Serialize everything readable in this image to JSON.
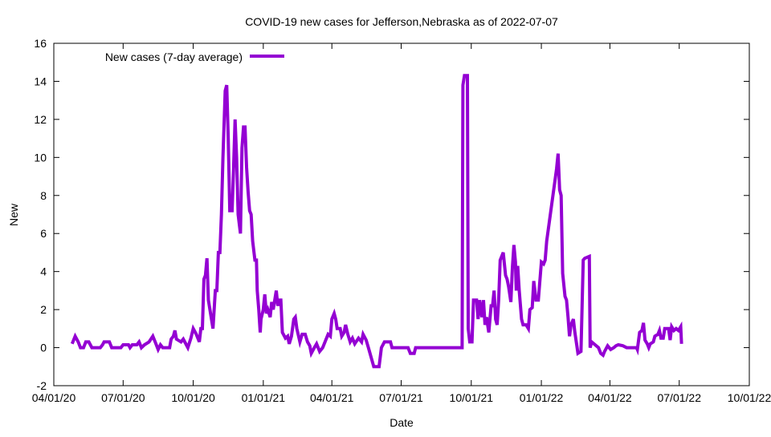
{
  "chart_data": {
    "type": "line",
    "title": "COVID-19 new cases for Jefferson,Nebraska as of 2022-07-07",
    "xlabel": "Date",
    "ylabel": "New",
    "x_units": "days since 04/01/20",
    "xlim": [
      0,
      913
    ],
    "ylim": [
      -2,
      16
    ],
    "grid": false,
    "legend_position": "top-left",
    "x_ticks": [
      {
        "value": 0,
        "label": "04/01/20"
      },
      {
        "value": 91,
        "label": "07/01/20"
      },
      {
        "value": 183,
        "label": "10/01/20"
      },
      {
        "value": 275,
        "label": "01/01/21"
      },
      {
        "value": 365,
        "label": "04/01/21"
      },
      {
        "value": 456,
        "label": "07/01/21"
      },
      {
        "value": 548,
        "label": "10/01/21"
      },
      {
        "value": 640,
        "label": "01/01/22"
      },
      {
        "value": 730,
        "label": "04/01/22"
      },
      {
        "value": 821,
        "label": "07/01/22"
      },
      {
        "value": 913,
        "label": "10/01/22"
      }
    ],
    "y_ticks": [
      {
        "value": -2,
        "label": "-2"
      },
      {
        "value": 0,
        "label": "0"
      },
      {
        "value": 2,
        "label": "2"
      },
      {
        "value": 4,
        "label": "4"
      },
      {
        "value": 6,
        "label": "6"
      },
      {
        "value": 8,
        "label": "8"
      },
      {
        "value": 10,
        "label": "10"
      },
      {
        "value": 12,
        "label": "12"
      },
      {
        "value": 14,
        "label": "14"
      },
      {
        "value": 16,
        "label": "16"
      }
    ],
    "series": [
      {
        "name": "New cases (7-day average)",
        "color": "#9400d3",
        "points": [
          [
            24,
            0.2
          ],
          [
            28,
            0.6
          ],
          [
            32,
            0.3
          ],
          [
            35,
            0
          ],
          [
            39,
            0
          ],
          [
            42,
            0.3
          ],
          [
            46,
            0.3
          ],
          [
            50,
            0
          ],
          [
            61,
            0
          ],
          [
            64,
            0.15
          ],
          [
            66,
            0.3
          ],
          [
            73,
            0.3
          ],
          [
            76,
            0
          ],
          [
            88,
            0
          ],
          [
            91,
            0.15
          ],
          [
            98,
            0.15
          ],
          [
            100,
            0
          ],
          [
            103,
            0.15
          ],
          [
            109,
            0.15
          ],
          [
            112,
            0.3
          ],
          [
            115,
            0
          ],
          [
            119,
            0.15
          ],
          [
            125,
            0.3
          ],
          [
            130,
            0.6
          ],
          [
            133,
            0.3
          ],
          [
            137,
            -0.1
          ],
          [
            140,
            0.15
          ],
          [
            143,
            0
          ],
          [
            152,
            0
          ],
          [
            154,
            0.45
          ],
          [
            157,
            0.6
          ],
          [
            159,
            0.9
          ],
          [
            161,
            0.45
          ],
          [
            167,
            0.3
          ],
          [
            170,
            0.45
          ],
          [
            174,
            0.15
          ],
          [
            176,
            0
          ],
          [
            180,
            0.5
          ],
          [
            183,
            1
          ],
          [
            187,
            0.7
          ],
          [
            191,
            0.3
          ],
          [
            193,
            1
          ],
          [
            195,
            1
          ],
          [
            197,
            3.6
          ],
          [
            199,
            3.8
          ],
          [
            201,
            4.7
          ],
          [
            203,
            2.5
          ],
          [
            207,
            1.5
          ],
          [
            209,
            1
          ],
          [
            212,
            3
          ],
          [
            214,
            3
          ],
          [
            216,
            5
          ],
          [
            218,
            5
          ],
          [
            220,
            7
          ],
          [
            222,
            10
          ],
          [
            225,
            13.5
          ],
          [
            227,
            13.8
          ],
          [
            229,
            11
          ],
          [
            231,
            7.2
          ],
          [
            234,
            7.2
          ],
          [
            236,
            9.5
          ],
          [
            238,
            12
          ],
          [
            240,
            10
          ],
          [
            242,
            7
          ],
          [
            245,
            6
          ],
          [
            247,
            10.5
          ],
          [
            249,
            11.6
          ],
          [
            251,
            11.6
          ],
          [
            253,
            9.5
          ],
          [
            255,
            8.2
          ],
          [
            257,
            7.2
          ],
          [
            259,
            7
          ],
          [
            261,
            5.6
          ],
          [
            264,
            4.6
          ],
          [
            266,
            4.6
          ],
          [
            267,
            3
          ],
          [
            269,
            2
          ],
          [
            271,
            0.8
          ],
          [
            272,
            1.5
          ],
          [
            275,
            2
          ],
          [
            277,
            2.8
          ],
          [
            279,
            1.8
          ],
          [
            281,
            2
          ],
          [
            284,
            1.6
          ],
          [
            286,
            2.4
          ],
          [
            288,
            2
          ],
          [
            290,
            2.5
          ],
          [
            292,
            3
          ],
          [
            294,
            2.2
          ],
          [
            296,
            2.5
          ],
          [
            298,
            2.5
          ],
          [
            300,
            0.8
          ],
          [
            304,
            0.5
          ],
          [
            307,
            0.6
          ],
          [
            309,
            0.2
          ],
          [
            312,
            0.6
          ],
          [
            315,
            1.5
          ],
          [
            317,
            1.6
          ],
          [
            319,
            1
          ],
          [
            323,
            0.3
          ],
          [
            326,
            0.7
          ],
          [
            330,
            0.7
          ],
          [
            333,
            0.3
          ],
          [
            336,
            0.1
          ],
          [
            338,
            -0.3
          ],
          [
            342,
            0
          ],
          [
            345,
            0.2
          ],
          [
            349,
            -0.2
          ],
          [
            353,
            0
          ],
          [
            356,
            0.3
          ],
          [
            360,
            0.7
          ],
          [
            363,
            0.6
          ],
          [
            365,
            1.5
          ],
          [
            368,
            1.8
          ],
          [
            370,
            1.5
          ],
          [
            372,
            1
          ],
          [
            376,
            1
          ],
          [
            378,
            0.6
          ],
          [
            381,
            0.8
          ],
          [
            383,
            1.2
          ],
          [
            386,
            0.7
          ],
          [
            389,
            0.3
          ],
          [
            392,
            0.5
          ],
          [
            395,
            0.2
          ],
          [
            400,
            0.5
          ],
          [
            404,
            0.3
          ],
          [
            406,
            0.7
          ],
          [
            410,
            0.4
          ],
          [
            413,
            0
          ],
          [
            420,
            -1
          ],
          [
            427,
            -1
          ],
          [
            430,
            0
          ],
          [
            434,
            0.3
          ],
          [
            442,
            0.3
          ],
          [
            444,
            0
          ],
          [
            465,
            0
          ],
          [
            468,
            -0.3
          ],
          [
            473,
            -0.3
          ],
          [
            475,
            0
          ],
          [
            536,
            0
          ],
          [
            537,
            13.8
          ],
          [
            539,
            14.3
          ],
          [
            543,
            14.3
          ],
          [
            544,
            1
          ],
          [
            546,
            0.3
          ],
          [
            549,
            0.3
          ],
          [
            551,
            2.5
          ],
          [
            555,
            2.5
          ],
          [
            557,
            1.5
          ],
          [
            559,
            2.5
          ],
          [
            562,
            1.6
          ],
          [
            564,
            2.5
          ],
          [
            566,
            1.2
          ],
          [
            568,
            1.6
          ],
          [
            571,
            0.8
          ],
          [
            574,
            2.2
          ],
          [
            576,
            2.2
          ],
          [
            578,
            3
          ],
          [
            580,
            1.5
          ],
          [
            582,
            1.2
          ],
          [
            584,
            2.5
          ],
          [
            586,
            4.6
          ],
          [
            588,
            4.8
          ],
          [
            590,
            5
          ],
          [
            593,
            3.8
          ],
          [
            595,
            3.6
          ],
          [
            597,
            3.2
          ],
          [
            600,
            2.4
          ],
          [
            602,
            4.2
          ],
          [
            604,
            5.4
          ],
          [
            606,
            4.5
          ],
          [
            607,
            3
          ],
          [
            609,
            4.3
          ],
          [
            611,
            3
          ],
          [
            614,
            1.5
          ],
          [
            616,
            1.2
          ],
          [
            620,
            1.2
          ],
          [
            623,
            1
          ],
          [
            625,
            2
          ],
          [
            628,
            2.1
          ],
          [
            630,
            3.5
          ],
          [
            633,
            2.5
          ],
          [
            636,
            2.5
          ],
          [
            638,
            3.5
          ],
          [
            640,
            4.5
          ],
          [
            643,
            4.4
          ],
          [
            645,
            4.6
          ],
          [
            647,
            5.6
          ],
          [
            660,
            9.4
          ],
          [
            662,
            10.2
          ],
          [
            664,
            8.3
          ],
          [
            666,
            8
          ],
          [
            668,
            3.9
          ],
          [
            671,
            2.7
          ],
          [
            673,
            2.5
          ],
          [
            675,
            1.6
          ],
          [
            677,
            0.6
          ],
          [
            679,
            1.2
          ],
          [
            682,
            1.5
          ],
          [
            684,
            0.8
          ],
          [
            687,
            0
          ],
          [
            688,
            -0.3
          ],
          [
            692,
            -0.2
          ],
          [
            695,
            4.6
          ],
          [
            697,
            4.7
          ],
          [
            703,
            4.8
          ],
          [
            704,
            0
          ],
          [
            706,
            0.3
          ],
          [
            715,
            0
          ],
          [
            718,
            -0.3
          ],
          [
            721,
            -0.4
          ],
          [
            723,
            -0.2
          ],
          [
            727,
            0.1
          ],
          [
            731,
            -0.1
          ],
          [
            735,
            0
          ],
          [
            738,
            0.1
          ],
          [
            741,
            0.15
          ],
          [
            747,
            0.1
          ],
          [
            752,
            0
          ],
          [
            765,
            0
          ],
          [
            766,
            -0.1
          ],
          [
            769,
            0.8
          ],
          [
            772,
            0.9
          ],
          [
            774,
            1.3
          ],
          [
            776,
            0.4
          ],
          [
            779,
            0.2
          ],
          [
            781,
            0
          ],
          [
            783,
            0.2
          ],
          [
            787,
            0.3
          ],
          [
            789,
            0.6
          ],
          [
            793,
            0.7
          ],
          [
            795,
            0.9
          ],
          [
            797,
            0.5
          ],
          [
            800,
            0.5
          ],
          [
            802,
            1
          ],
          [
            807,
            1
          ],
          [
            809,
            0.4
          ],
          [
            811,
            1.1
          ],
          [
            814,
            0.9
          ],
          [
            817,
            1
          ],
          [
            820,
            0.9
          ],
          [
            823,
            1.1
          ],
          [
            824,
            0.2
          ]
        ]
      }
    ]
  }
}
